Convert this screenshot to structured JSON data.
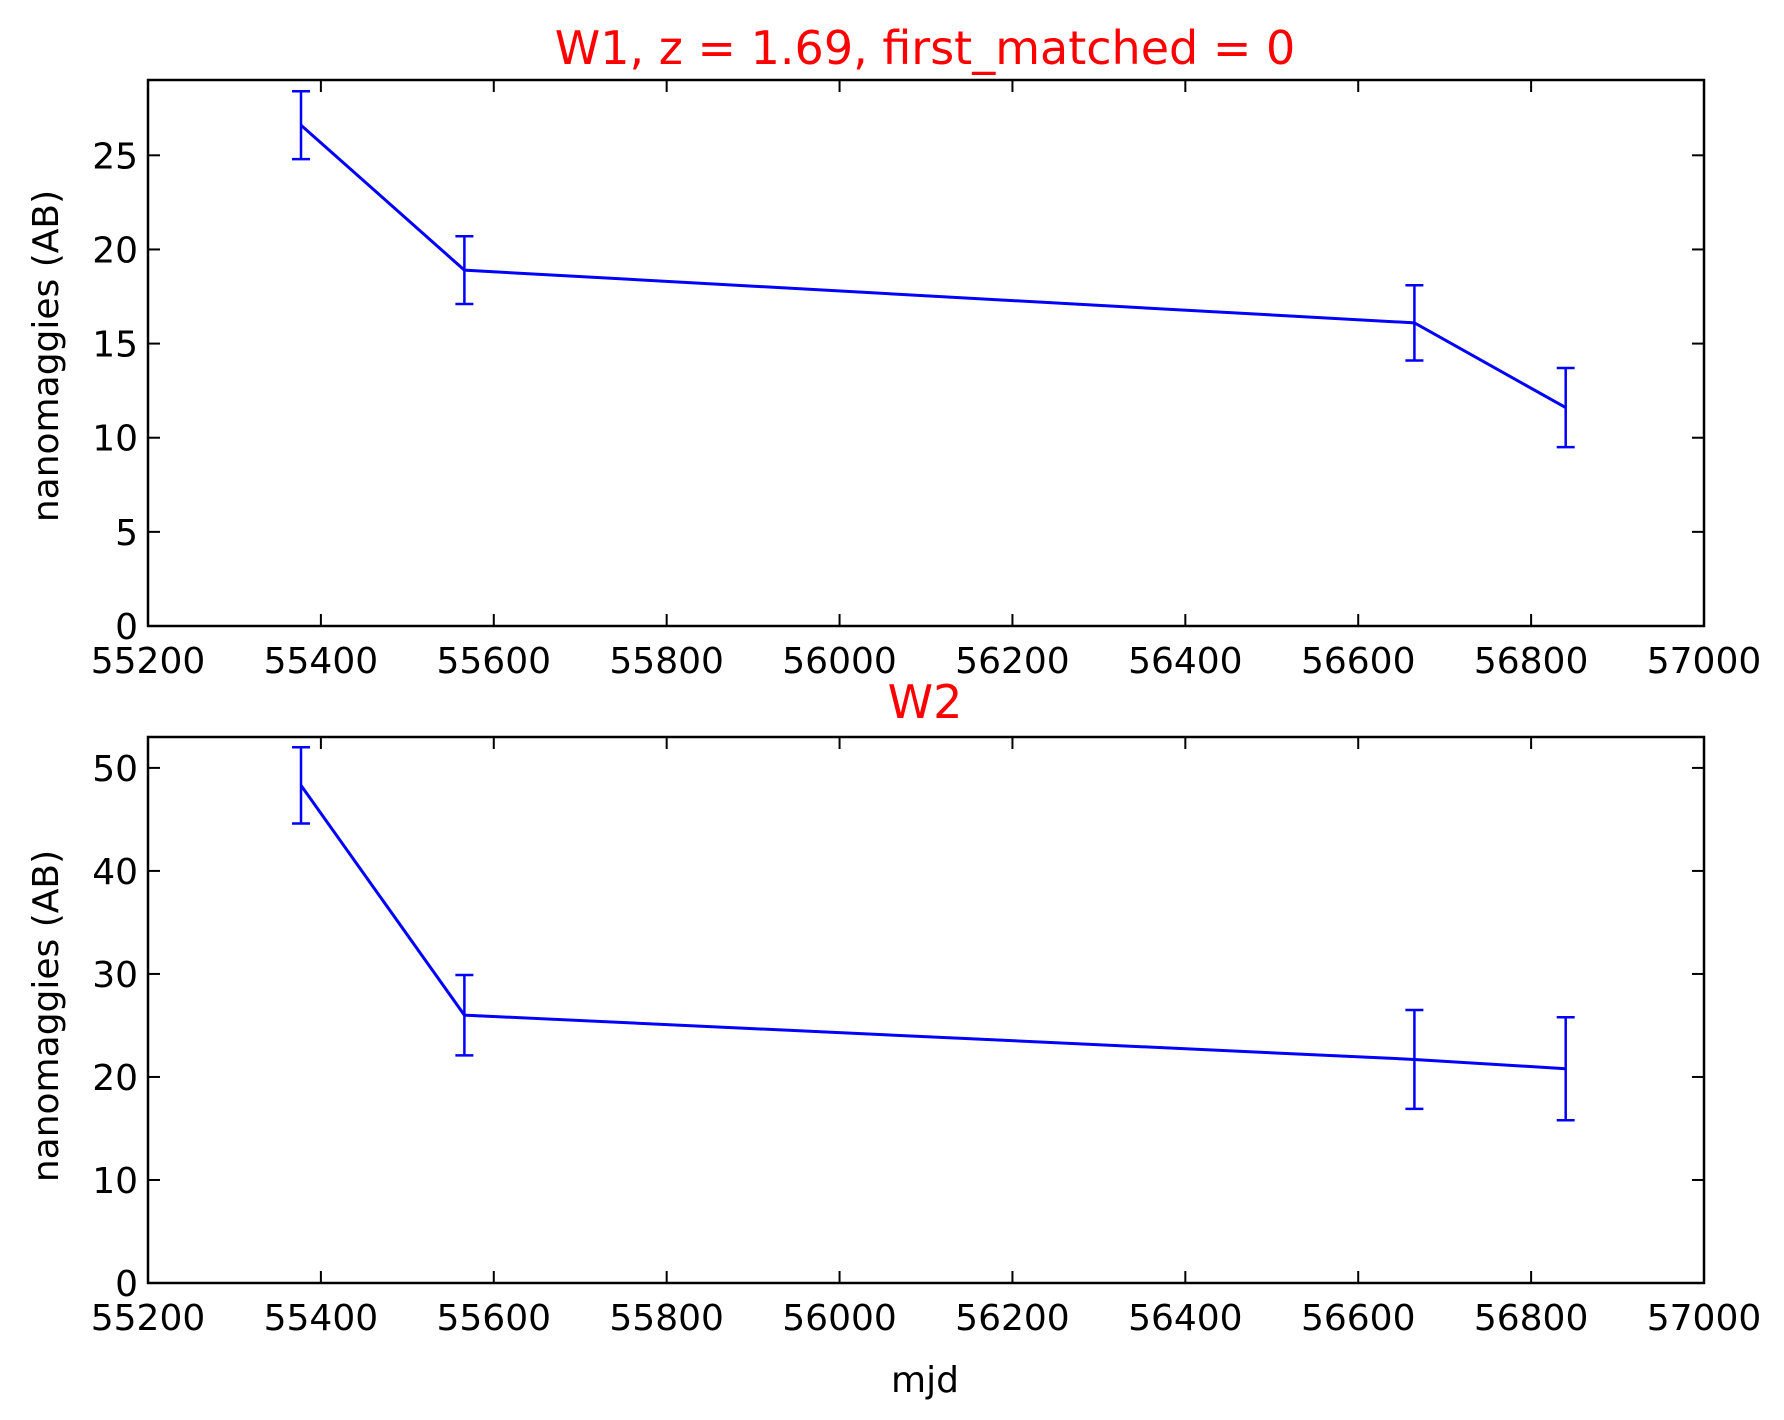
{
  "colors": {
    "title": "#ff0000",
    "series": "#0000ff",
    "axes": "#000000",
    "background": "#ffffff"
  },
  "chart_data": [
    {
      "type": "line",
      "title": "W1, z = 1.69, first_matched = 0",
      "xlabel": "",
      "ylabel": "nanomaggies (AB)",
      "xlim": [
        55200,
        57000
      ],
      "ylim": [
        0,
        29
      ],
      "xticks": [
        55200,
        55400,
        55600,
        55800,
        56000,
        56200,
        56400,
        56600,
        56800,
        57000
      ],
      "yticks": [
        0,
        5,
        10,
        15,
        20,
        25
      ],
      "grid": false,
      "series": [
        {
          "x": [
            55377,
            55566,
            56665,
            56840
          ],
          "y": [
            26.6,
            18.9,
            16.1,
            11.6
          ],
          "yerr": [
            1.8,
            1.8,
            2.0,
            2.1
          ]
        }
      ]
    },
    {
      "type": "line",
      "title": "W2",
      "xlabel": "mjd",
      "ylabel": "nanomaggies (AB)",
      "xlim": [
        55200,
        57000
      ],
      "ylim": [
        0,
        53
      ],
      "xticks": [
        55200,
        55400,
        55600,
        55800,
        56000,
        56200,
        56400,
        56600,
        56800,
        57000
      ],
      "yticks": [
        0,
        10,
        20,
        30,
        40,
        50
      ],
      "grid": false,
      "series": [
        {
          "x": [
            55377,
            55566,
            56665,
            56840
          ],
          "y": [
            48.3,
            26.0,
            21.7,
            20.8
          ],
          "yerr": [
            3.7,
            3.9,
            4.8,
            5.0
          ]
        }
      ]
    }
  ]
}
